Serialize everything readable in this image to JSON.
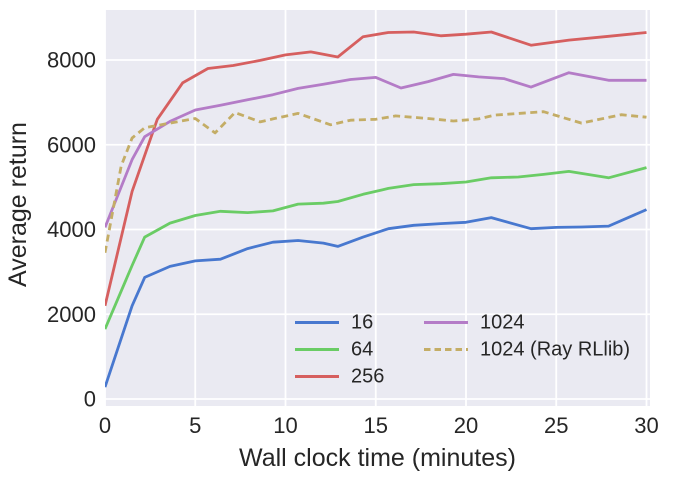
{
  "style": {
    "fig_bg": "#ffffff",
    "plot_bg": "#eaeaf2",
    "grid_color": "#ffffff",
    "text_color": "#262626",
    "line_width": 2.8
  },
  "chart_data": {
    "type": "line",
    "title": "",
    "xlabel": "Wall clock time (minutes)",
    "ylabel": "Average return",
    "xlim": [
      0,
      30
    ],
    "ylim": [
      -165,
      9175
    ],
    "xticks": [
      0,
      5,
      10,
      15,
      20,
      25,
      30
    ],
    "yticks": [
      0,
      2000,
      4000,
      6000,
      8000
    ],
    "grid": true,
    "legend_position": "lower-center, two columns, no frame",
    "series": [
      {
        "name": "16",
        "color": "#4878CF",
        "dash": "solid",
        "points": [
          [
            0,
            280
          ],
          [
            1.5,
            2200
          ],
          [
            2.2,
            2870
          ],
          [
            3.6,
            3130
          ],
          [
            5,
            3260
          ],
          [
            6.4,
            3300
          ],
          [
            7.9,
            3550
          ],
          [
            9.3,
            3700
          ],
          [
            10.7,
            3740
          ],
          [
            12.1,
            3680
          ],
          [
            12.9,
            3600
          ],
          [
            14.3,
            3820
          ],
          [
            15.7,
            4020
          ],
          [
            17.1,
            4100
          ],
          [
            18.6,
            4140
          ],
          [
            20,
            4170
          ],
          [
            21.4,
            4280
          ],
          [
            23.6,
            4020
          ],
          [
            25,
            4050
          ],
          [
            26.4,
            4060
          ],
          [
            27.9,
            4080
          ],
          [
            30,
            4470
          ]
        ]
      },
      {
        "name": "64",
        "color": "#6ACC65",
        "dash": "solid",
        "points": [
          [
            0,
            1650
          ],
          [
            1.5,
            3150
          ],
          [
            2.2,
            3820
          ],
          [
            3.6,
            4150
          ],
          [
            5,
            4330
          ],
          [
            6.4,
            4430
          ],
          [
            7.9,
            4400
          ],
          [
            9.3,
            4440
          ],
          [
            10.7,
            4600
          ],
          [
            12.1,
            4620
          ],
          [
            12.9,
            4660
          ],
          [
            14.3,
            4830
          ],
          [
            15.7,
            4970
          ],
          [
            17.1,
            5060
          ],
          [
            18.6,
            5080
          ],
          [
            20,
            5120
          ],
          [
            21.4,
            5220
          ],
          [
            22.9,
            5240
          ],
          [
            24.3,
            5300
          ],
          [
            25.7,
            5370
          ],
          [
            27.9,
            5220
          ],
          [
            30,
            5460
          ]
        ]
      },
      {
        "name": "256",
        "color": "#D65F5F",
        "dash": "solid",
        "points": [
          [
            0,
            2200
          ],
          [
            1.5,
            4900
          ],
          [
            2.9,
            6600
          ],
          [
            4.3,
            7460
          ],
          [
            5.7,
            7800
          ],
          [
            7.1,
            7870
          ],
          [
            8.6,
            7990
          ],
          [
            10,
            8120
          ],
          [
            11.4,
            8190
          ],
          [
            12.9,
            8070
          ],
          [
            14.3,
            8550
          ],
          [
            15.7,
            8650
          ],
          [
            17.1,
            8660
          ],
          [
            18.6,
            8570
          ],
          [
            20,
            8610
          ],
          [
            21.4,
            8660
          ],
          [
            23.6,
            8350
          ],
          [
            25.7,
            8470
          ],
          [
            27.9,
            8560
          ],
          [
            30,
            8650
          ]
        ]
      },
      {
        "name": "1024",
        "color": "#B47CC7",
        "dash": "solid",
        "points": [
          [
            0,
            4050
          ],
          [
            1.5,
            5650
          ],
          [
            2.2,
            6190
          ],
          [
            3.6,
            6550
          ],
          [
            5,
            6820
          ],
          [
            6.4,
            6930
          ],
          [
            7.9,
            7060
          ],
          [
            9.3,
            7180
          ],
          [
            10.7,
            7330
          ],
          [
            12.1,
            7430
          ],
          [
            13.6,
            7540
          ],
          [
            15,
            7590
          ],
          [
            16.4,
            7340
          ],
          [
            17.9,
            7490
          ],
          [
            19.3,
            7660
          ],
          [
            20.7,
            7600
          ],
          [
            22.1,
            7560
          ],
          [
            23.6,
            7360
          ],
          [
            25.7,
            7700
          ],
          [
            27.9,
            7520
          ],
          [
            30,
            7520
          ]
        ]
      },
      {
        "name": "1024 (Ray RLlib)",
        "color": "#C4AD66",
        "dash": "dashed",
        "points": [
          [
            0,
            3450
          ],
          [
            0.9,
            5500
          ],
          [
            1.5,
            6160
          ],
          [
            2.2,
            6400
          ],
          [
            3.6,
            6510
          ],
          [
            5,
            6620
          ],
          [
            6.1,
            6280
          ],
          [
            7.2,
            6760
          ],
          [
            8.6,
            6540
          ],
          [
            9.3,
            6610
          ],
          [
            10.7,
            6740
          ],
          [
            12.5,
            6470
          ],
          [
            13.6,
            6580
          ],
          [
            15,
            6600
          ],
          [
            16.1,
            6680
          ],
          [
            17.9,
            6620
          ],
          [
            19.3,
            6560
          ],
          [
            20.7,
            6610
          ],
          [
            21.6,
            6700
          ],
          [
            24.3,
            6780
          ],
          [
            26.4,
            6510
          ],
          [
            28.6,
            6710
          ],
          [
            30,
            6650
          ]
        ]
      }
    ]
  }
}
